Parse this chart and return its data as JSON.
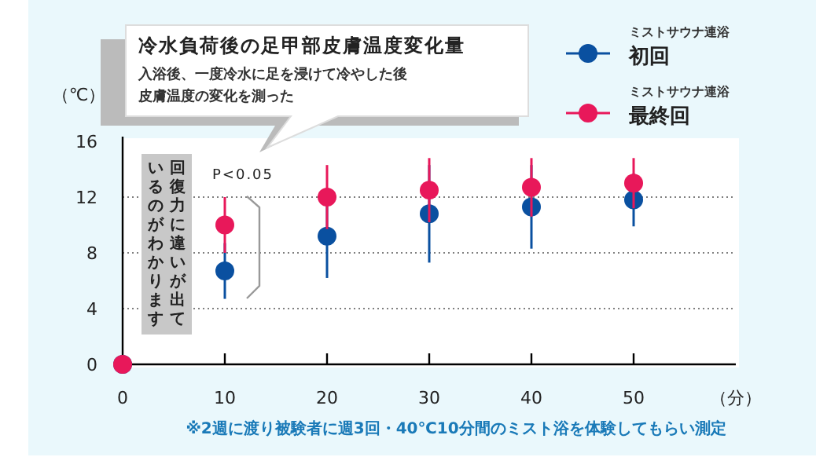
{
  "chart_data": {
    "type": "scatter",
    "title": "冷水負荷後の足甲部皮膚温度変化量",
    "subtitle": "入浴後、一度冷水に足を浸けて冷やした後皮膚温度の変化を測った",
    "xlabel": "（分）",
    "ylabel": "（℃）",
    "x": [
      0,
      10,
      20,
      30,
      40,
      50
    ],
    "series": [
      {
        "name": "ミストサウナ連浴初回",
        "color": "#0a50a0",
        "values": [
          0,
          6.7,
          9.2,
          10.8,
          11.3,
          11.8
        ],
        "errors": [
          null,
          2.0,
          3.0,
          3.5,
          3.0,
          1.9
        ]
      },
      {
        "name": "ミストサウナ連浴最終回",
        "color": "#e8185a",
        "values": [
          0,
          10.0,
          12.0,
          12.5,
          12.7,
          13.0
        ],
        "errors": [
          null,
          2.0,
          2.3,
          2.3,
          2.1,
          1.8
        ]
      }
    ],
    "xlim": [
      0,
      60
    ],
    "xticks": [
      0,
      10,
      20,
      30,
      40,
      50
    ],
    "ylim": [
      0,
      16
    ],
    "yticks": [
      0,
      4,
      8,
      12,
      16
    ],
    "grid": "y",
    "legend": "top right",
    "marker": "circle",
    "annotations": [
      "P<0.05",
      "回復力に違いが出ているのがわかります",
      "※2週に渡り被験者に週3回・40℃10分間のミスト浴を体験してもらい測定"
    ]
  }
}
